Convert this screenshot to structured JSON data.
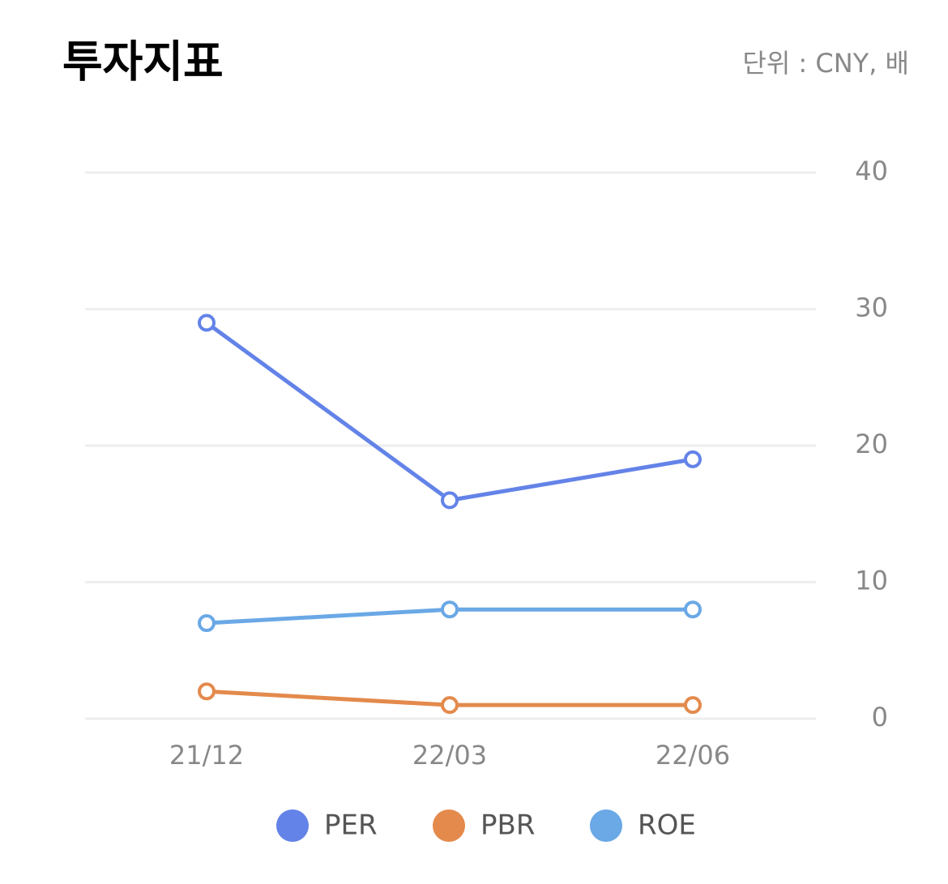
{
  "chart_data": {
    "type": "line",
    "title": "투자지표",
    "subtitle": "단위 : CNY, 배",
    "categories": [
      "21/12",
      "22/03",
      "22/06"
    ],
    "series": [
      {
        "name": "PER",
        "color": "#6383e8",
        "values": [
          29,
          16,
          19
        ]
      },
      {
        "name": "PBR",
        "color": "#e38a4c",
        "values": [
          2,
          1,
          1
        ]
      },
      {
        "name": "ROE",
        "color": "#6aa8e6",
        "values": [
          7,
          8,
          8
        ]
      }
    ],
    "ylim": [
      0,
      40
    ],
    "yticks": [
      0,
      10,
      20,
      30,
      40
    ],
    "grid": true,
    "y_axis_side": "right",
    "legend": "bottom"
  }
}
